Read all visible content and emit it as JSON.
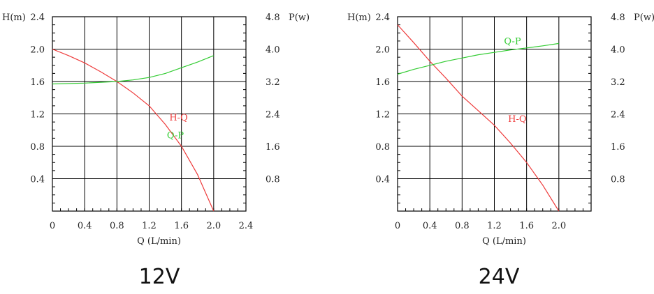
{
  "colors": {
    "hq": "#ee3b3b",
    "qp": "#33cc33",
    "grid": "#000000"
  },
  "chart_data": [
    {
      "type": "line",
      "caption": "12V",
      "xlabel": "Q (L/min)",
      "ylabel_left": "H(m)",
      "ylabel_right": "P(w)",
      "xlim": [
        0,
        2.4
      ],
      "ylim_left": [
        0,
        2.4
      ],
      "ylim_right": [
        0,
        4.8
      ],
      "x_ticks": [
        "0",
        "0.4",
        "0.8",
        "1.2",
        "1.6",
        "2.0",
        "2.4"
      ],
      "y_left_ticks": [
        "2.4",
        "2.0",
        "1.6",
        "1.2",
        "0.8",
        "0.4"
      ],
      "y_right_ticks": [
        "4.8",
        "4.0",
        "3.2",
        "2.4",
        "1.6",
        "0.8"
      ],
      "grid": true,
      "series": [
        {
          "name": "H-Q",
          "axis": "left",
          "x": [
            0,
            0.2,
            0.4,
            0.6,
            0.8,
            1.0,
            1.2,
            1.4,
            1.6,
            1.8,
            2.0
          ],
          "y": [
            2.0,
            1.92,
            1.83,
            1.72,
            1.6,
            1.46,
            1.3,
            1.07,
            0.8,
            0.45,
            0.0
          ],
          "label_at": [
            1.45,
            1.12
          ]
        },
        {
          "name": "Q-P",
          "axis": "right",
          "x": [
            0,
            0.4,
            0.8,
            1.0,
            1.2,
            1.4,
            1.6,
            1.8,
            2.0
          ],
          "y": [
            3.14,
            3.16,
            3.2,
            3.24,
            3.3,
            3.4,
            3.54,
            3.68,
            3.84
          ],
          "label_at": [
            1.42,
            1.8
          ]
        }
      ]
    },
    {
      "type": "line",
      "caption": "24V",
      "xlabel": "Q (L/min)",
      "ylabel_left": "H(m)",
      "ylabel_right": "P(w)",
      "xlim": [
        0,
        2.4
      ],
      "ylim_left": [
        0,
        2.4
      ],
      "ylim_right": [
        0,
        4.8
      ],
      "x_ticks": [
        "0",
        "0.4",
        "0.8",
        "1.2",
        "1.6",
        "2.0"
      ],
      "y_left_ticks": [
        "2.4",
        "2.0",
        "1.6",
        "1.2",
        "0.8",
        "0.4"
      ],
      "y_right_ticks": [
        "4.8",
        "4.0",
        "3.2",
        "2.4",
        "1.6",
        "0.8"
      ],
      "grid": true,
      "series": [
        {
          "name": "H-Q",
          "axis": "left",
          "x": [
            0,
            0.2,
            0.4,
            0.6,
            0.8,
            1.0,
            1.2,
            1.4,
            1.6,
            1.8,
            2.0
          ],
          "y": [
            2.3,
            2.08,
            1.85,
            1.64,
            1.42,
            1.24,
            1.06,
            0.84,
            0.6,
            0.32,
            0.0
          ],
          "label_at": [
            1.37,
            1.1
          ]
        },
        {
          "name": "Q-P",
          "axis": "right",
          "x": [
            0,
            0.2,
            0.4,
            0.6,
            0.8,
            1.0,
            1.2,
            1.4,
            1.6,
            1.8,
            2.0
          ],
          "y": [
            3.38,
            3.5,
            3.6,
            3.7,
            3.78,
            3.86,
            3.92,
            3.98,
            4.03,
            4.08,
            4.14
          ],
          "label_at": [
            1.32,
            4.12
          ]
        }
      ]
    }
  ]
}
